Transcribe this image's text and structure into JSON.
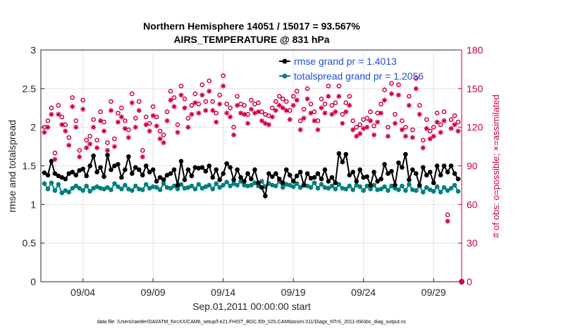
{
  "chart_data": {
    "type": "line",
    "title": "Northern Hemisphere 14051 / 15017 = 93.567%",
    "subtitle": "AIRS_TEMPERATURE @ 831 hPa",
    "xlabel": "Sep.01,2011 00:00:00 start",
    "ylabel": "rmse and totalspread",
    "y2label": "# of obs: o=possible; ×=assimilated",
    "xlim": [
      1,
      31
    ],
    "ylim": [
      0,
      3
    ],
    "y2lim": [
      0,
      180
    ],
    "x_tick_labels": [
      "09/04",
      "09/09",
      "09/14",
      "09/19",
      "09/24",
      "09/29"
    ],
    "x_ticks": [
      4,
      9,
      14,
      19,
      24,
      29
    ],
    "y_ticks": [
      "0",
      "0.5",
      "1",
      "1.5",
      "2",
      "2.5",
      "3"
    ],
    "y2_ticks": [
      "0",
      "30",
      "60",
      "90",
      "120",
      "150",
      "180"
    ],
    "x": [
      1.25,
      1.5,
      1.75,
      2.0,
      2.25,
      2.5,
      2.75,
      3.0,
      3.25,
      3.5,
      3.75,
      4.0,
      4.25,
      4.5,
      4.75,
      5.0,
      5.25,
      5.5,
      5.75,
      6.0,
      6.25,
      6.5,
      6.75,
      7.0,
      7.25,
      7.5,
      7.75,
      8.0,
      8.25,
      8.5,
      8.75,
      9.0,
      9.25,
      9.5,
      9.75,
      10.0,
      10.25,
      10.5,
      10.75,
      11.0,
      11.25,
      11.5,
      11.75,
      12.0,
      12.25,
      12.5,
      12.75,
      13.0,
      13.25,
      13.5,
      13.75,
      14.0,
      14.25,
      14.5,
      14.75,
      15.0,
      15.25,
      15.5,
      15.75,
      16.0,
      16.25,
      16.5,
      16.75,
      17.0,
      17.25,
      17.5,
      17.75,
      18.0,
      18.25,
      18.5,
      18.75,
      19.0,
      19.25,
      19.5,
      19.75,
      20.0,
      20.25,
      20.5,
      20.75,
      21.0,
      21.25,
      21.5,
      21.75,
      22.0,
      22.25,
      22.5,
      22.75,
      23.0,
      23.25,
      23.5,
      23.75,
      24.0,
      24.25,
      24.5,
      24.75,
      25.0,
      25.25,
      25.5,
      25.75,
      26.0,
      26.25,
      26.5,
      26.75,
      27.0,
      27.25,
      27.5,
      27.75,
      28.0,
      28.25,
      28.5,
      28.75,
      29.0,
      29.25,
      29.5,
      29.75,
      30.0,
      30.25,
      30.5,
      30.75
    ],
    "series": [
      {
        "name": "rmse grand pr = 1.4013",
        "color": "#000000",
        "marker": "filled-circle",
        "values": [
          1.41,
          1.38,
          1.56,
          1.4,
          1.37,
          1.35,
          1.33,
          1.4,
          1.42,
          1.38,
          1.44,
          1.46,
          1.37,
          1.5,
          1.63,
          1.42,
          1.48,
          1.36,
          1.64,
          1.45,
          1.5,
          1.52,
          1.35,
          1.45,
          1.62,
          1.4,
          1.48,
          1.45,
          1.38,
          1.5,
          1.42,
          1.45,
          1.3,
          1.35,
          1.32,
          1.38,
          1.4,
          1.45,
          1.25,
          1.56,
          1.32,
          1.45,
          1.37,
          1.48,
          1.47,
          1.48,
          1.43,
          1.5,
          1.35,
          1.45,
          1.32,
          1.4,
          1.53,
          1.48,
          1.32,
          1.45,
          1.35,
          1.3,
          1.4,
          1.33,
          1.45,
          1.28,
          1.22,
          1.11,
          1.4,
          1.36,
          1.4,
          1.33,
          1.28,
          1.45,
          1.38,
          1.3,
          1.37,
          1.42,
          1.25,
          1.4,
          1.34,
          1.35,
          1.4,
          1.33,
          1.45,
          1.3,
          1.35,
          1.28,
          1.66,
          1.55,
          1.65,
          1.38,
          1.42,
          1.3,
          1.45,
          1.35,
          1.36,
          1.25,
          1.42,
          1.3,
          1.33,
          1.52,
          1.4,
          1.43,
          1.25,
          1.54,
          1.48,
          1.65,
          1.32,
          1.45,
          1.4,
          1.25,
          1.48,
          1.38,
          1.42,
          1.28,
          1.5,
          1.38,
          1.5,
          1.42,
          1.5,
          1.4,
          1.33
        ]
      },
      {
        "name": "totalspread grand pr = 1.2056",
        "color": "#00807f",
        "marker": "filled-circle",
        "values": [
          1.27,
          1.2,
          1.28,
          1.18,
          1.26,
          1.15,
          1.18,
          1.16,
          1.21,
          1.24,
          1.21,
          1.18,
          1.24,
          1.17,
          1.21,
          1.23,
          1.21,
          1.2,
          1.22,
          1.19,
          1.27,
          1.23,
          1.2,
          1.25,
          1.2,
          1.18,
          1.24,
          1.2,
          1.19,
          1.26,
          1.21,
          1.23,
          1.22,
          1.19,
          1.27,
          1.22,
          1.21,
          1.24,
          1.2,
          1.26,
          1.21,
          1.22,
          1.24,
          1.2,
          1.26,
          1.21,
          1.23,
          1.25,
          1.2,
          1.27,
          1.22,
          1.25,
          1.29,
          1.24,
          1.27,
          1.25,
          1.3,
          1.25,
          1.24,
          1.25,
          1.28,
          1.24,
          1.3,
          1.23,
          1.27,
          1.25,
          1.24,
          1.3,
          1.22,
          1.26,
          1.25,
          1.23,
          1.27,
          1.22,
          1.26,
          1.24,
          1.22,
          1.28,
          1.21,
          1.26,
          1.22,
          1.21,
          1.24,
          1.2,
          1.26,
          1.21,
          1.2,
          1.24,
          1.19,
          1.25,
          1.23,
          1.18,
          1.24,
          1.2,
          1.25,
          1.19,
          1.2,
          1.23,
          1.18,
          1.24,
          1.21,
          1.19,
          1.24,
          1.18,
          1.26,
          1.19,
          1.18,
          1.24,
          1.16,
          1.22,
          1.19,
          1.17,
          1.23,
          1.16,
          1.22,
          1.18,
          1.21,
          1.25,
          1.17
        ]
      },
      {
        "name": "# of obs possible",
        "axis": "right",
        "color": "#d0004a",
        "marker": "open-circle",
        "values": [
          120,
          125,
          135,
          100,
          137,
          128,
          122,
          112,
          143,
          125,
          102,
          141,
          110,
          113,
          126,
          110,
          132,
          124,
          108,
          140,
          111,
          131,
          135,
          125,
          118,
          146,
          127,
          140,
          102,
          128,
          123,
          136,
          128,
          117,
          114,
          132,
          148,
          143,
          122,
          152,
          142,
          127,
          137,
          146,
          138,
          153,
          140,
          156,
          140,
          131,
          145,
          160,
          138,
          135,
          120,
          144,
          138,
          137,
          130,
          141,
          138,
          139,
          132,
          130,
          129,
          135,
          140,
          144,
          142,
          140,
          133,
          144,
          148,
          125,
          134,
          150,
          138,
          132,
          125,
          142,
          138,
          152,
          137,
          139,
          152,
          130,
          139,
          144,
          125,
          120,
          122,
          126,
          127,
          132,
          121,
          131,
          138,
          149,
          120,
          154,
          130,
          153,
          125,
          120,
          144,
          118,
          158,
          137,
          110,
          126,
          117,
          120,
          131,
          122,
          132,
          52,
          126,
          129,
          124
        ]
      },
      {
        "name": "# of obs assimilated",
        "axis": "right",
        "color": "#d0004a",
        "marker": "star",
        "values": [
          116,
          120,
          130,
          95,
          130,
          122,
          117,
          106,
          136,
          120,
          97,
          134,
          104,
          107,
          120,
          104,
          125,
          117,
          102,
          133,
          105,
          124,
          128,
          119,
          112,
          139,
          120,
          133,
          97,
          122,
          117,
          129,
          121,
          111,
          108,
          125,
          141,
          136,
          116,
          145,
          135,
          120,
          130,
          139,
          131,
          145,
          133,
          148,
          133,
          124,
          138,
          152,
          131,
          128,
          114,
          137,
          131,
          130,
          123,
          134,
          131,
          132,
          125,
          123,
          122,
          128,
          133,
          137,
          135,
          133,
          126,
          137,
          141,
          118,
          127,
          142,
          131,
          125,
          118,
          135,
          131,
          144,
          130,
          132,
          144,
          123,
          132,
          137,
          118,
          113,
          115,
          119,
          120,
          125,
          114,
          124,
          131,
          141,
          113,
          146,
          123,
          145,
          118,
          113,
          137,
          112,
          150,
          130,
          104,
          119,
          111,
          113,
          124,
          116,
          125,
          47,
          119,
          122,
          117
        ]
      }
    ],
    "zero_marker": {
      "x": 31,
      "value": 0
    },
    "legend_position": "top-right",
    "grid": true
  },
  "footer": "data file: /Users/raeder/DAI/ATM_forcXX/CAM6_setup/f.e21.FHIST_BGC.f09_025.CAM6assim.011/Diags_NTrS_2011-09/obs_diag_output.nc"
}
